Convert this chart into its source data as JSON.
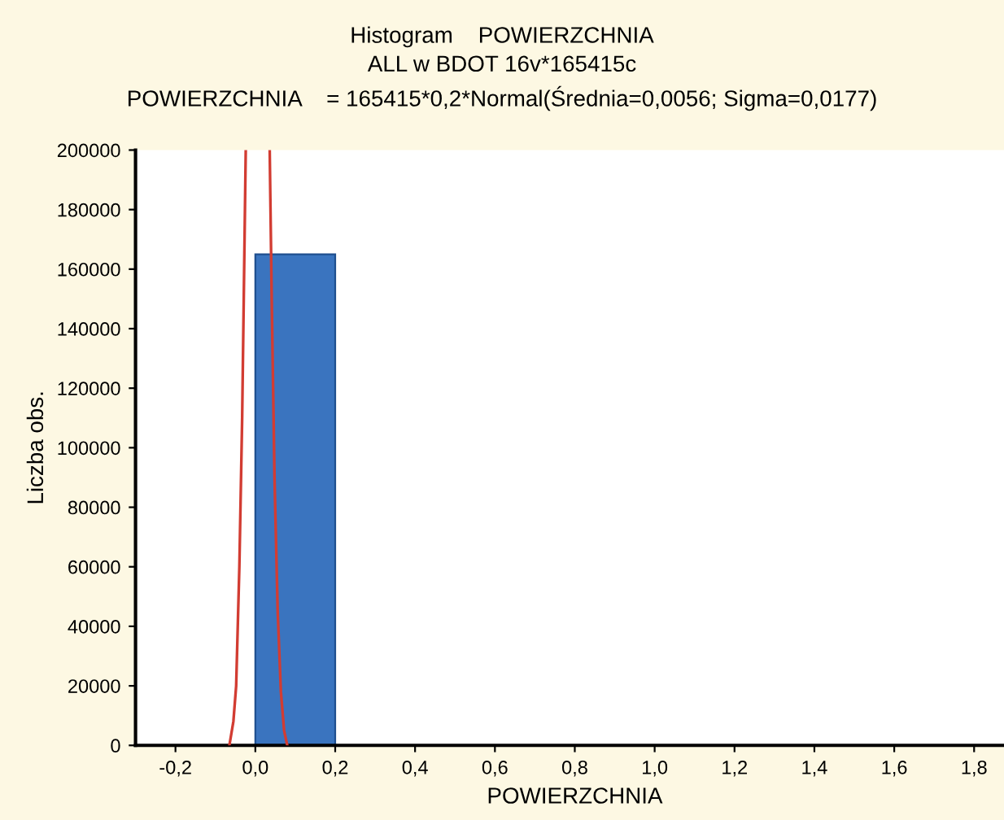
{
  "chart_data": {
    "type": "histogram",
    "title": "Histogram    POWIERZCHNIA",
    "subtitle": "ALL w BDOT 16v*165415c",
    "annotations": [
      "POWIERZCHNIA    = 165415*0,2*Normal(Średnia=0,0056; Sigma=0,0177)"
    ],
    "xlabel": "POWIERZCHNIA",
    "ylabel": "Liczba obs.",
    "bins": [
      0.0,
      0.2
    ],
    "values": [
      165000
    ],
    "color": "#3a74bf",
    "series": [
      {
        "type": "line",
        "color": "#d23c32",
        "x": [
          -0.065,
          -0.055,
          -0.048,
          -0.04,
          -0.033,
          -0.028,
          -0.024,
          null,
          0.036,
          0.041,
          0.048,
          0.056,
          0.064,
          0.072,
          0.08
        ],
        "values": [
          0,
          8000,
          20000,
          60000,
          110000,
          160000,
          200000,
          null,
          200000,
          150000,
          90000,
          45000,
          18000,
          5000,
          0
        ]
      }
    ],
    "xlim": [
      -0.3,
      1.9
    ],
    "xticks": [
      {
        "value": -0.2,
        "label": "-0,2"
      },
      {
        "value": 0.0,
        "label": "0,0"
      },
      {
        "value": 0.2,
        "label": "0,2"
      },
      {
        "value": 0.4,
        "label": "0,4"
      },
      {
        "value": 0.6,
        "label": "0,6"
      },
      {
        "value": 0.8,
        "label": "0,8"
      },
      {
        "value": 1.0,
        "label": "1,0"
      },
      {
        "value": 1.2,
        "label": "1,2"
      },
      {
        "value": 1.4,
        "label": "1,4"
      },
      {
        "value": 1.6,
        "label": "1,6"
      },
      {
        "value": 1.8,
        "label": "1,8"
      }
    ],
    "ylim": [
      0,
      200000
    ],
    "yticks": [
      0,
      20000,
      40000,
      60000,
      80000,
      100000,
      120000,
      140000,
      160000,
      180000,
      200000
    ],
    "grid": false,
    "legend": false
  }
}
